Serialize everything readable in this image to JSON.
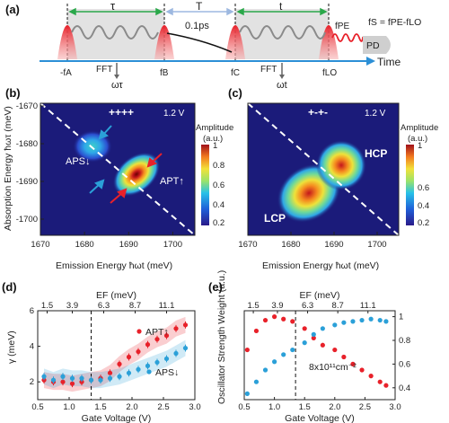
{
  "panel_a": {
    "label": "(a)",
    "tau": "τ",
    "T": "T",
    "T_value": "0.1ps",
    "t": "t",
    "fA": "-fA",
    "fB": "fB",
    "fC": "fC",
    "fLO": "fLO",
    "fPE": "fPE",
    "fS_eq": "fS = fPE-fLO",
    "fft1": "FFT",
    "fft2": "FFT",
    "omega_tau": "ωτ",
    "omega_t": "ωt",
    "pd": "PD",
    "time": "Time"
  },
  "panel_b": {
    "label": "(b)",
    "pol": "++++",
    "voltage": "1.2 V",
    "ylabel": "Absorption Energy ħωτ (meV)",
    "xlabel": "Emission Energy ħωt (meV)",
    "xticks": [
      "1670",
      "1680",
      "1690",
      "1700"
    ],
    "yticks": [
      "-1670",
      "-1680",
      "-1690",
      "-1700"
    ],
    "peak1": "APS↓",
    "peak2": "APT↑",
    "cbar_title": "Amplitude",
    "cbar_unit": "(a.u.)",
    "cbar_ticks": [
      "1",
      "0.8",
      "0.6",
      "0.4",
      "0.2"
    ]
  },
  "panel_c": {
    "label": "(c)",
    "pol": "+-+-",
    "voltage": "1.2 V",
    "xlabel": "Emission Energy ħωt (meV)",
    "xticks": [
      "1670",
      "1680",
      "1690",
      "1700"
    ],
    "peak1": "HCP",
    "peak2": "LCP",
    "cbar_title": "Amplitude",
    "cbar_unit": "(a.u.)",
    "cbar_ticks": [
      "1",
      "0.6",
      "0.4",
      "0.2"
    ]
  },
  "colors": {
    "red": "#e8212a",
    "blue": "#2ba0d8",
    "gray_wave": "#8a8a8a",
    "time_axis": "#2c8fd6",
    "arrow_green": "#2aa84a"
  },
  "chart_data": [
    {
      "type": "scatter",
      "panel": "(d)",
      "xlabel": "Gate Voltage (V)",
      "ylabel": "γ (meV)",
      "top_xlabel": "EF (meV)",
      "top_xticks": [
        "1.5",
        "3.9",
        "6.3",
        "8.7",
        "11.1"
      ],
      "xticks": [
        "0.5",
        "1.0",
        "1.5",
        "2.0",
        "2.5",
        "3.0"
      ],
      "yticks": [
        "2",
        "4",
        "6"
      ],
      "xlim": [
        0.5,
        3.0
      ],
      "ylim": [
        1.0,
        6.0
      ],
      "dashed_x": 1.35,
      "series": [
        {
          "name": "APT↑",
          "color": "#e8212a",
          "x": [
            0.6,
            0.75,
            0.9,
            1.05,
            1.2,
            1.35,
            1.5,
            1.65,
            1.8,
            1.95,
            2.1,
            2.25,
            2.4,
            2.55,
            2.7,
            2.85
          ],
          "y": [
            2.1,
            2.0,
            2.0,
            1.9,
            2.0,
            2.1,
            2.2,
            2.5,
            3.0,
            3.4,
            3.7,
            4.1,
            4.4,
            4.6,
            5.0,
            5.2
          ]
        },
        {
          "name": "APS↓",
          "color": "#2ba0d8",
          "x": [
            0.6,
            0.75,
            0.9,
            1.05,
            1.2,
            1.35,
            1.5,
            1.65,
            1.8,
            1.95,
            2.1,
            2.25,
            2.4,
            2.55,
            2.7,
            2.85
          ],
          "y": [
            2.3,
            2.1,
            2.3,
            2.2,
            2.2,
            2.1,
            2.1,
            2.2,
            2.3,
            2.5,
            2.7,
            2.9,
            3.1,
            3.3,
            3.6,
            3.9
          ]
        }
      ]
    },
    {
      "type": "scatter",
      "panel": "(e)",
      "xlabel": "Gate Voltage (V)",
      "ylabel": "Oscillator Strength Weight (a.u.)",
      "top_xlabel": "EF (meV)",
      "top_xticks": [
        "1.5",
        "3.9",
        "6.3",
        "8.7",
        "11.1"
      ],
      "xticks": [
        "0.5",
        "1.0",
        "1.5",
        "2.0",
        "2.5",
        "3.0"
      ],
      "yticks_right": [
        "0.4",
        "0.6",
        "0.8",
        "1"
      ],
      "xlim": [
        0.5,
        3.0
      ],
      "ylim": [
        0.3,
        1.05
      ],
      "dashed_x": 1.35,
      "annotation": "8x10¹¹cm⁻²",
      "series": [
        {
          "name": "red",
          "color": "#e8212a",
          "x": [
            0.55,
            0.7,
            0.85,
            1.0,
            1.15,
            1.3,
            1.5,
            1.65,
            1.8,
            2.0,
            2.15,
            2.3,
            2.45,
            2.6,
            2.75,
            2.85
          ],
          "y": [
            0.72,
            0.88,
            0.97,
            1.0,
            0.98,
            0.96,
            0.9,
            0.82,
            0.76,
            0.72,
            0.66,
            0.6,
            0.55,
            0.5,
            0.45,
            0.42
          ]
        },
        {
          "name": "blue",
          "color": "#2ba0d8",
          "x": [
            0.55,
            0.7,
            0.85,
            1.0,
            1.15,
            1.3,
            1.5,
            1.65,
            1.8,
            2.0,
            2.15,
            2.3,
            2.45,
            2.6,
            2.75,
            2.85
          ],
          "y": [
            0.35,
            0.45,
            0.55,
            0.62,
            0.68,
            0.72,
            0.78,
            0.85,
            0.9,
            0.93,
            0.95,
            0.96,
            0.97,
            0.98,
            0.97,
            0.96
          ]
        }
      ]
    }
  ]
}
